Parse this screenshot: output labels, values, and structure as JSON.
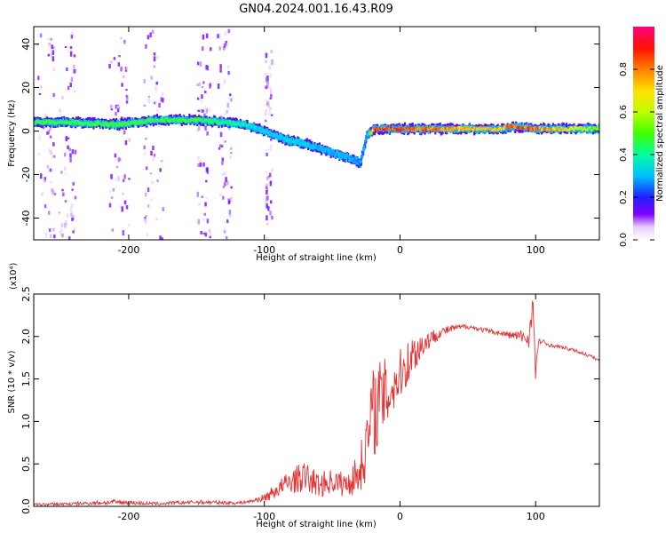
{
  "title": "GN04.2024.001.16.43.R09",
  "chart_data": [
    {
      "type": "heatmap",
      "xlabel": "Height of straight line (km)",
      "ylabel": "Frequency (Hz)",
      "xlim": [
        -270,
        147
      ],
      "ylim": [
        -50,
        48
      ],
      "xticks": [
        -200,
        -100,
        0,
        100
      ],
      "xtick_labels": [
        "-200",
        "-100",
        "0",
        "100"
      ],
      "yticks": [
        -40,
        -20,
        0,
        20,
        40
      ],
      "ytick_labels": [
        "-40",
        "-20",
        "0",
        "20",
        "40"
      ],
      "colorbar": {
        "label": "Normalized spectral amplitude",
        "range": [
          0,
          1
        ],
        "ticks": [
          0,
          0.2,
          0.4,
          0.6,
          0.8
        ],
        "tick_labels": [
          "0.0",
          "0.2",
          "0.4",
          "0.6",
          "0.8"
        ]
      },
      "ridge": {
        "x": [
          -270,
          -240,
          -210,
          -180,
          -150,
          -130,
          -115,
          -100,
          -85,
          -70,
          -55,
          -45,
          -40,
          -35,
          -30,
          -25,
          -20,
          0,
          50,
          75,
          80,
          85,
          100,
          147
        ],
        "y": [
          4,
          4,
          3,
          5,
          5,
          4,
          3,
          0,
          -4,
          -6,
          -9,
          -11,
          -12,
          -13,
          -15,
          -2,
          1,
          1,
          1,
          1,
          2,
          2,
          1,
          1
        ],
        "amplitude": [
          0.5,
          0.5,
          0.5,
          0.5,
          0.5,
          0.45,
          0.4,
          0.35,
          0.35,
          0.35,
          0.3,
          0.3,
          0.3,
          0.28,
          0.25,
          0.3,
          0.9,
          0.9,
          0.75,
          0.75,
          0.9,
          0.9,
          0.85,
          0.55
        ]
      }
    },
    {
      "type": "line",
      "xlabel": "Height of straight line (km)",
      "ylabel": "SNR (10 * v/v)",
      "scale_label": "(x10⁴)",
      "xlim": [
        -270,
        147
      ],
      "ylim": [
        0,
        2.5
      ],
      "xticks": [
        -200,
        -100,
        0,
        100
      ],
      "xtick_labels": [
        "-200",
        "-100",
        "0",
        "100"
      ],
      "yticks": [
        0,
        0.5,
        1,
        1.5,
        2,
        2.5
      ],
      "ytick_labels": [
        "0.0",
        "0.5",
        "1.0",
        "1.5",
        "2.0",
        "2.5"
      ],
      "series": [
        {
          "name": "SNR",
          "color": "#e83030",
          "x": [
            -270,
            -240,
            -210,
            -180,
            -150,
            -120,
            -110,
            -100,
            -90,
            -80,
            -70,
            -60,
            -50,
            -40,
            -30,
            -25,
            -20,
            -15,
            -10,
            0,
            10,
            20,
            30,
            40,
            50,
            60,
            70,
            80,
            90,
            95,
            98,
            100,
            102,
            110,
            120,
            130,
            140,
            147
          ],
          "y": [
            0.02,
            0.03,
            0.05,
            0.03,
            0.05,
            0.04,
            0.06,
            0.1,
            0.2,
            0.3,
            0.35,
            0.25,
            0.3,
            0.25,
            0.4,
            0.7,
            1.1,
            1.25,
            1.3,
            1.55,
            1.8,
            1.95,
            2.05,
            2.1,
            2.12,
            2.08,
            2.05,
            2.02,
            2.0,
            1.97,
            2.4,
            1.5,
            1.95,
            1.9,
            1.87,
            1.83,
            1.77,
            1.72
          ],
          "noise": [
            0.015,
            0.02,
            0.03,
            0.02,
            0.025,
            0.02,
            0.02,
            0.05,
            0.1,
            0.15,
            0.18,
            0.15,
            0.15,
            0.15,
            0.25,
            0.4,
            0.55,
            0.5,
            0.45,
            0.3,
            0.25,
            0.12,
            0.06,
            0.04,
            0.03,
            0.03,
            0.03,
            0.04,
            0.08,
            0.1,
            0.15,
            0.1,
            0.05,
            0.02,
            0.02,
            0.02,
            0.02,
            0.02
          ]
        }
      ]
    }
  ]
}
